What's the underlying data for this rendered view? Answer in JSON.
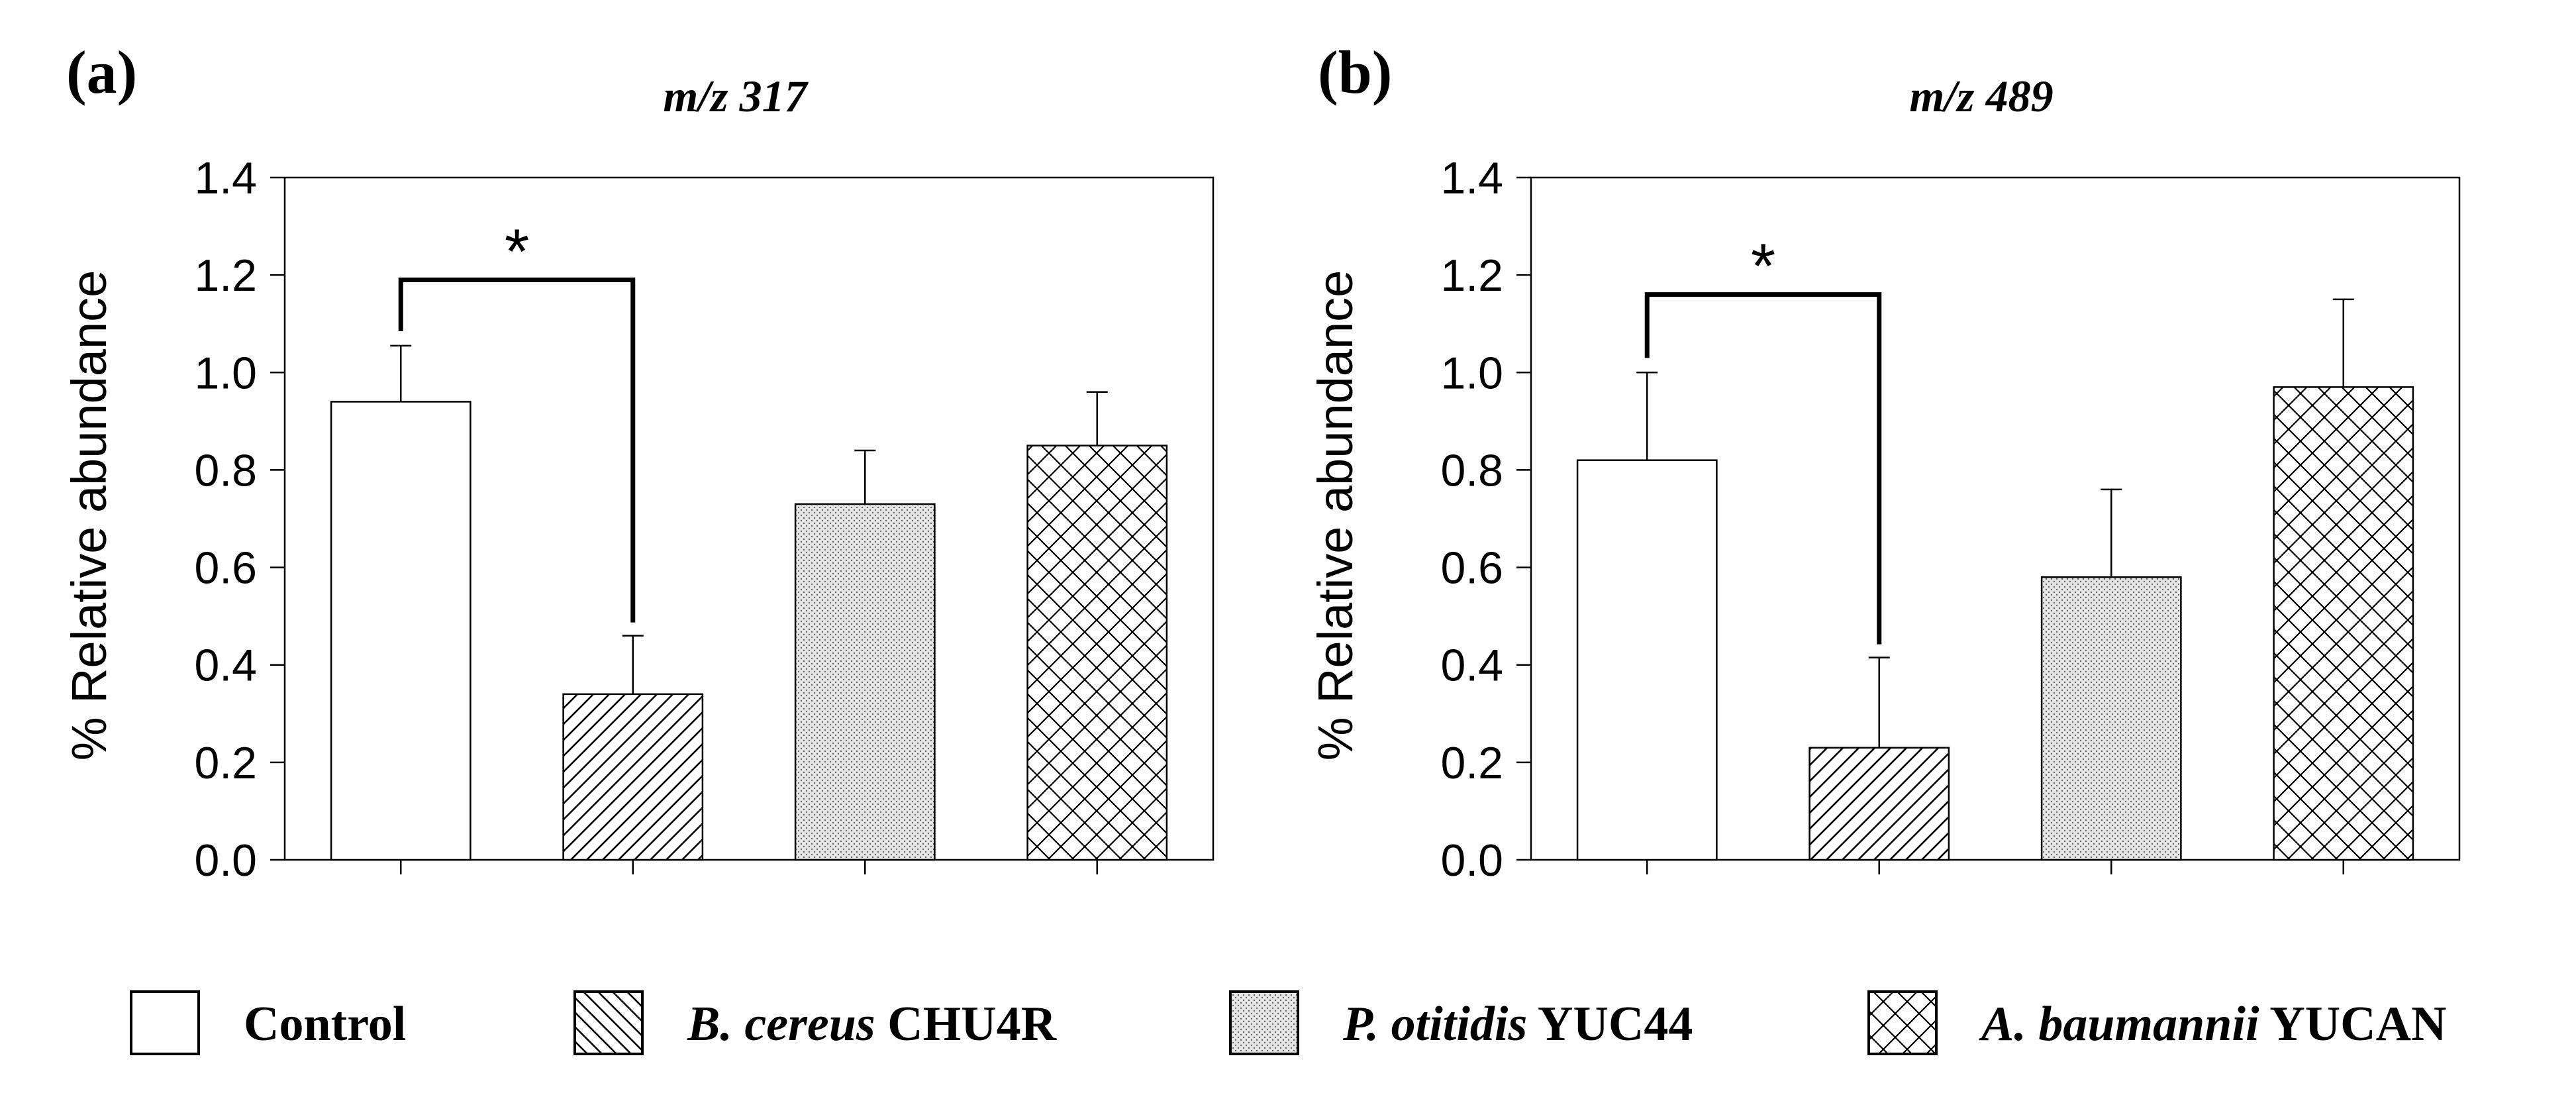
{
  "legend_position": "bottom",
  "legend": [
    {
      "pattern": "white",
      "text": "Control",
      "italic_part": "",
      "rest": "Control"
    },
    {
      "pattern": "diag",
      "text": "B. cereus CHU4R",
      "italic_part": "B. cereus",
      "rest": " CHU4R"
    },
    {
      "pattern": "dots",
      "text": "P. otitidis YUC44",
      "italic_part": "P. otitidis",
      "rest": " YUC44"
    },
    {
      "pattern": "cross",
      "text": "A. baumannii YUCAN",
      "italic_part": "A. baumannii",
      "rest": " YUCAN"
    }
  ],
  "chart_data": [
    {
      "type": "bar",
      "panel_label": "(a)",
      "title": "m/z 317",
      "xlabel": "",
      "ylabel": "% Relative abundance",
      "ylim": [
        0,
        1.4
      ],
      "yticks": [
        "0.0",
        "0.2",
        "0.4",
        "0.6",
        "0.8",
        "1.0",
        "1.2",
        "1.4"
      ],
      "categories": [
        "Control",
        "B. cereus CHU4R",
        "P. otitidis YUC44",
        "A. baumannii YUCAN"
      ],
      "values": [
        0.94,
        0.34,
        0.73,
        0.85
      ],
      "errors": [
        0.115,
        0.12,
        0.11,
        0.11
      ],
      "significance": {
        "from": 0,
        "to": 1,
        "label": "*",
        "level": 1.19
      }
    },
    {
      "type": "bar",
      "panel_label": "(b)",
      "title": "m/z 489",
      "xlabel": "",
      "ylabel": "% Relative abundance",
      "ylim": [
        0,
        1.4
      ],
      "yticks": [
        "0.0",
        "0.2",
        "0.4",
        "0.6",
        "0.8",
        "1.0",
        "1.2",
        "1.4"
      ],
      "categories": [
        "Control",
        "B. cereus CHU4R",
        "P. otitidis YUC44",
        "A. baumannii YUCAN"
      ],
      "values": [
        0.82,
        0.23,
        0.58,
        0.97
      ],
      "errors": [
        0.18,
        0.185,
        0.18,
        0.18
      ],
      "significance": {
        "from": 0,
        "to": 1,
        "label": "*",
        "level": 1.16
      }
    }
  ]
}
